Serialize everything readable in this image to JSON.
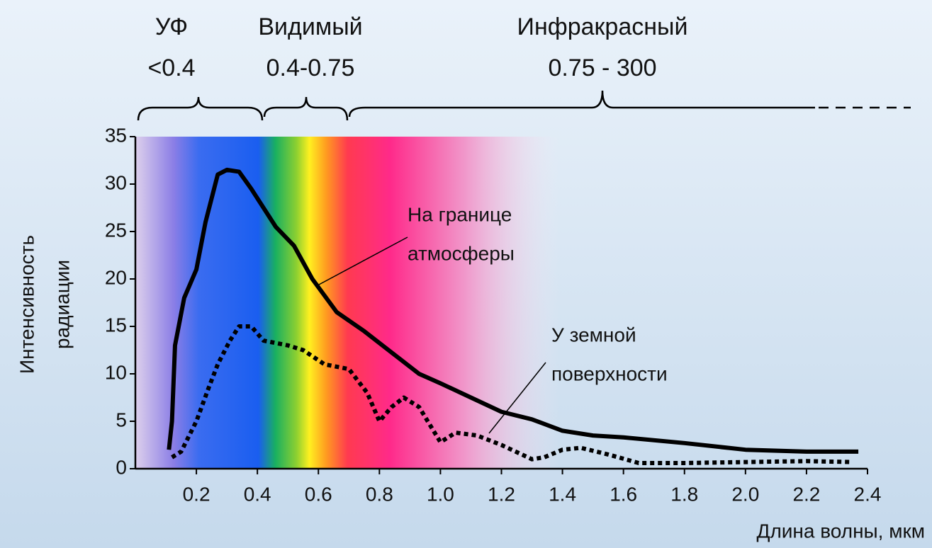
{
  "chart_data": {
    "type": "line",
    "bands": [
      {
        "name": "УФ",
        "range": "<0.4"
      },
      {
        "name": "Видимый",
        "range": "0.4-0.75"
      },
      {
        "name": "Инфракрасный",
        "range": "0.75 - 300"
      }
    ],
    "y_label": [
      "Интенсивность",
      "радиации"
    ],
    "x_label": "Длина волны, мкм",
    "xlim": [
      0,
      2.4
    ],
    "ylim": [
      0,
      35
    ],
    "xticks": [
      0.2,
      0.4,
      0.6,
      0.8,
      {
        "value": 1,
        "label": "1.0"
      },
      1.2,
      1.4,
      1.6,
      1.8,
      {
        "value": 2,
        "label": "2.0"
      },
      2.2,
      2.4
    ],
    "yticks": [
      0,
      5,
      10,
      15,
      20,
      25,
      30,
      35
    ],
    "series": [
      {
        "name": [
          "На границе",
          "атмосферы"
        ],
        "color": "#000000",
        "style": "solid",
        "x": [
          0.11,
          0.12,
          0.13,
          0.16,
          0.2,
          0.23,
          0.27,
          0.3,
          0.34,
          0.38,
          0.42,
          0.46,
          0.52,
          0.58,
          0.66,
          0.75,
          0.85,
          0.93,
          1.0,
          1.1,
          1.2,
          1.3,
          1.4,
          1.5,
          1.6,
          1.8,
          2.0,
          2.2,
          2.37
        ],
        "values": [
          2,
          5,
          13,
          18,
          21,
          26,
          31,
          31.5,
          31.3,
          29.5,
          27.5,
          25.5,
          23.5,
          20,
          16.5,
          14.5,
          12,
          10,
          9,
          7.5,
          6,
          5.2,
          4,
          3.5,
          3.3,
          2.7,
          2,
          1.8,
          1.8
        ]
      },
      {
        "name": [
          "У земной",
          "поверхности"
        ],
        "color": "#000000",
        "style": "dotted",
        "x": [
          0.12,
          0.15,
          0.2,
          0.24,
          0.27,
          0.31,
          0.34,
          0.38,
          0.42,
          0.5,
          0.55,
          0.62,
          0.7,
          0.76,
          0.8,
          0.84,
          0.88,
          0.93,
          1.0,
          1.05,
          1.12,
          1.2,
          1.3,
          1.34,
          1.4,
          1.46,
          1.55,
          1.65,
          1.8,
          2.0,
          2.2,
          2.35
        ],
        "values": [
          1.2,
          1.8,
          5,
          8.5,
          11,
          13.5,
          15,
          15,
          13.5,
          13,
          12.5,
          11,
          10.5,
          8,
          5,
          6.5,
          7.5,
          6.5,
          2.8,
          3.8,
          3.5,
          2.5,
          1,
          1.2,
          2,
          2.2,
          1.5,
          0.6,
          0.6,
          0.7,
          0.8,
          0.7
        ]
      }
    ]
  }
}
